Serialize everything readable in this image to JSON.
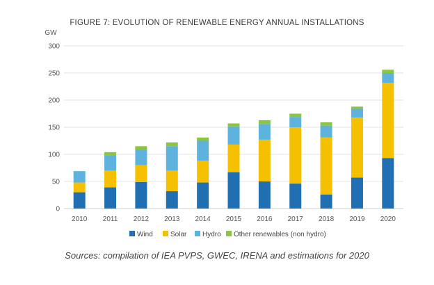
{
  "chart_data": {
    "type": "bar",
    "stacked": true,
    "title": "FIGURE 7: EVOLUTION OF RENEWABLE ENERGY ANNUAL INSTALLATIONS",
    "ylabel": "GW",
    "xlabel": "",
    "ylim": [
      0,
      300
    ],
    "yticks": [
      0,
      50,
      100,
      150,
      200,
      250,
      300
    ],
    "grid": true,
    "legend_position": "bottom",
    "categories": [
      "2010",
      "2011",
      "2012",
      "2013",
      "2014",
      "2015",
      "2016",
      "2017",
      "2018",
      "2019",
      "2020"
    ],
    "series": [
      {
        "name": "Wind",
        "color": "#1f6fb2",
        "values": [
          30,
          39,
          49,
          32,
          48,
          67,
          50,
          46,
          26,
          57,
          93
        ]
      },
      {
        "name": "Solar",
        "color": "#f5c000",
        "values": [
          18,
          31,
          31,
          38,
          40,
          51,
          77,
          104,
          105,
          111,
          139
        ]
      },
      {
        "name": "Hydro",
        "color": "#5db3dd",
        "values": [
          21,
          28,
          29,
          45,
          37,
          33,
          29,
          19,
          22,
          16,
          18
        ]
      },
      {
        "name": "Other renewables (non hydro)",
        "color": "#8cc63f",
        "values": [
          0,
          6,
          6,
          7,
          6,
          6,
          7,
          6,
          6,
          4,
          6
        ]
      }
    ],
    "source": "Sources: compilation of IEA PVPS, GWEC, IRENA and estimations for 2020"
  }
}
